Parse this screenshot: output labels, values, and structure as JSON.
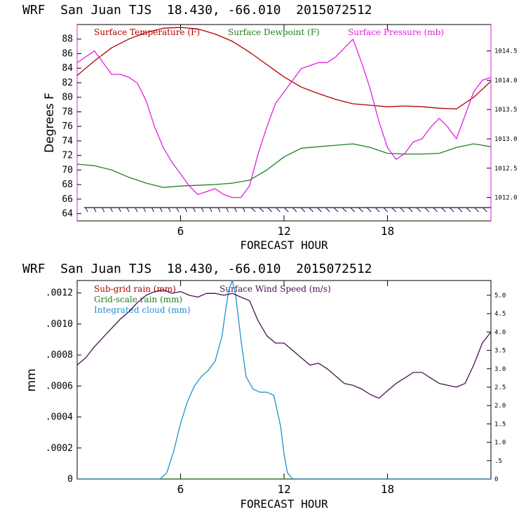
{
  "chart_data": [
    {
      "type": "line",
      "title": "WRF  San Juan TJS  18.430, -66.010  2015072512",
      "xlabel": "FORECAST HOUR",
      "ylabel": "Degrees F",
      "xlim": [
        0,
        24
      ],
      "xticks": [
        "6",
        "12",
        "18"
      ],
      "ylim": [
        63,
        90
      ],
      "yticks": [
        "64",
        "66",
        "68",
        "70",
        "72",
        "74",
        "76",
        "78",
        "80",
        "82",
        "84",
        "86",
        "88"
      ],
      "y2lim": [
        1011.6,
        1014.95
      ],
      "y2ticks": [
        "1012.0",
        "1012.5",
        "1013.0",
        "1013.5",
        "1014.0",
        "1014.5"
      ],
      "legend": [
        "Surface Temperature (F)",
        "Surface Dewpoint (F)",
        "Surface Pressure (mb)"
      ],
      "series": [
        {
          "name": "Surface Temperature (F)",
          "color": "#b00000",
          "axis": "left",
          "x": [
            0,
            1,
            2,
            3,
            4,
            5,
            6,
            7,
            8,
            9,
            10,
            11,
            12,
            13,
            14,
            15,
            16,
            17,
            18,
            19,
            20,
            21,
            22,
            23,
            24
          ],
          "y": [
            83,
            85,
            86.8,
            88,
            88.9,
            89.5,
            89.6,
            89.4,
            88.7,
            87.7,
            86.2,
            84.5,
            82.8,
            81.4,
            80.5,
            79.7,
            79.1,
            78.9,
            78.7,
            78.8,
            78.7,
            78.5,
            78.4,
            80,
            82.2
          ]
        },
        {
          "name": "Surface Dewpoint (F)",
          "color": "#208020",
          "axis": "left",
          "x": [
            0,
            1,
            2,
            3,
            4,
            5,
            6,
            7,
            8,
            9,
            10,
            11,
            12,
            13,
            14,
            15,
            16,
            17,
            18,
            19,
            20,
            21,
            22,
            23,
            24
          ],
          "y": [
            70.8,
            70.6,
            70,
            69,
            68.2,
            67.6,
            67.8,
            67.9,
            68,
            68.2,
            68.6,
            70,
            71.8,
            73,
            73.2,
            73.4,
            73.6,
            73.1,
            72.3,
            72.2,
            72.2,
            72.3,
            73.1,
            73.6,
            73.2
          ]
        },
        {
          "name": "Surface Pressure (mb)",
          "color": "#e020e0",
          "axis": "right",
          "x": [
            0,
            0.5,
            1,
            1.5,
            2,
            2.5,
            3,
            3.5,
            4,
            4.5,
            5,
            5.5,
            6,
            6.5,
            7,
            7.5,
            8,
            8.5,
            9,
            9.5,
            10,
            10.5,
            11,
            11.5,
            12,
            12.5,
            13,
            13.5,
            14,
            14.5,
            15,
            15.5,
            16,
            16.5,
            17,
            17.5,
            18,
            18.5,
            19,
            19.5,
            20,
            20.5,
            21,
            21.5,
            22,
            22.5,
            23,
            23.5,
            24
          ],
          "y": [
            1014.3,
            1014.4,
            1014.5,
            1014.3,
            1014.1,
            1014.1,
            1014.05,
            1013.95,
            1013.65,
            1013.2,
            1012.85,
            1012.6,
            1012.4,
            1012.2,
            1012.05,
            1012.1,
            1012.15,
            1012.05,
            1012.0,
            1012.0,
            1012.2,
            1012.75,
            1013.2,
            1013.6,
            1013.8,
            1014.0,
            1014.2,
            1014.25,
            1014.3,
            1014.3,
            1014.4,
            1014.55,
            1014.7,
            1014.3,
            1013.85,
            1013.3,
            1012.85,
            1012.65,
            1012.75,
            1012.95,
            1013.0,
            1013.2,
            1013.35,
            1013.2,
            1013.0,
            1013.4,
            1013.8,
            1014.0,
            1014.05
          ]
        }
      ],
      "wind_barbs": "surface wind barbs drawn along the lower axis"
    },
    {
      "type": "line",
      "title": "WRF  San Juan TJS  18.430, -66.010  2015072512",
      "xlabel": "FORECAST HOUR",
      "ylabel": "mm",
      "xlim": [
        0,
        24
      ],
      "xticks": [
        "6",
        "12",
        "18"
      ],
      "ylim": [
        0,
        0.00128
      ],
      "yticks": [
        "0",
        ".0002",
        ".0004",
        ".0006",
        ".0008",
        ".0010",
        ".0012"
      ],
      "y2lim": [
        0,
        5.4
      ],
      "y2ticks": [
        "0",
        ".5",
        "1.0",
        "1.5",
        "2.0",
        "2.5",
        "3.0",
        "3.5",
        "4.0",
        "4.5",
        "5.0"
      ],
      "legend": [
        "Sub-grid rain (mm)",
        "Grid-scale rain (mm)",
        "Integrated cloud (mm)",
        "Surface Wind Speed (m/s)"
      ],
      "series": [
        {
          "name": "Sub-grid rain (mm)",
          "color": "#b00000",
          "axis": "left",
          "x": [
            0,
            24
          ],
          "y": [
            0,
            0
          ]
        },
        {
          "name": "Grid-scale rain (mm)",
          "color": "#208020",
          "axis": "left",
          "x": [
            0,
            24
          ],
          "y": [
            0,
            0
          ]
        },
        {
          "name": "Integrated cloud (mm)",
          "color": "#2090d0",
          "axis": "left",
          "x": [
            0,
            4.8,
            5.2,
            5.6,
            6,
            6.4,
            6.8,
            7.2,
            7.6,
            8,
            8.4,
            8.6,
            8.8,
            9,
            9.2,
            9.5,
            9.8,
            10.2,
            10.6,
            11,
            11.4,
            11.8,
            12,
            12.2,
            12.5,
            24
          ],
          "y": [
            0,
            0,
            4e-05,
            0.00018,
            0.00036,
            0.0005,
            0.0006,
            0.00066,
            0.0007,
            0.00076,
            0.00092,
            0.00108,
            0.00122,
            0.00128,
            0.00118,
            0.0009,
            0.00066,
            0.00058,
            0.00056,
            0.00056,
            0.00054,
            0.00034,
            0.00016,
            4e-05,
            0,
            0
          ]
        },
        {
          "name": "Surface Wind Speed (m/s)",
          "color": "#4a1050",
          "axis": "right",
          "x": [
            0,
            0.5,
            1,
            1.5,
            2,
            2.5,
            3,
            3.5,
            4,
            4.5,
            5,
            5.5,
            6,
            6.5,
            7,
            7.5,
            8,
            8.5,
            9,
            9.5,
            10,
            10.5,
            11,
            11.5,
            12,
            12.5,
            13,
            13.5,
            14,
            14.5,
            15,
            15.5,
            16,
            16.5,
            17,
            17.5,
            18,
            18.5,
            19,
            19.5,
            20,
            20.5,
            21,
            21.5,
            22,
            22.5,
            23,
            23.5,
            24
          ],
          "y": [
            3.1,
            3.3,
            3.6,
            3.85,
            4.1,
            4.35,
            4.55,
            4.8,
            5.0,
            5.1,
            5.15,
            5.05,
            5.1,
            5.0,
            4.95,
            5.05,
            5.05,
            5.0,
            5.05,
            4.95,
            4.85,
            4.3,
            3.9,
            3.7,
            3.7,
            3.5,
            3.3,
            3.1,
            3.15,
            3.0,
            2.8,
            2.6,
            2.55,
            2.45,
            2.3,
            2.2,
            2.4,
            2.6,
            2.75,
            2.9,
            2.9,
            2.75,
            2.6,
            2.55,
            2.5,
            2.6,
            3.1,
            3.7,
            4.0
          ]
        }
      ]
    }
  ]
}
